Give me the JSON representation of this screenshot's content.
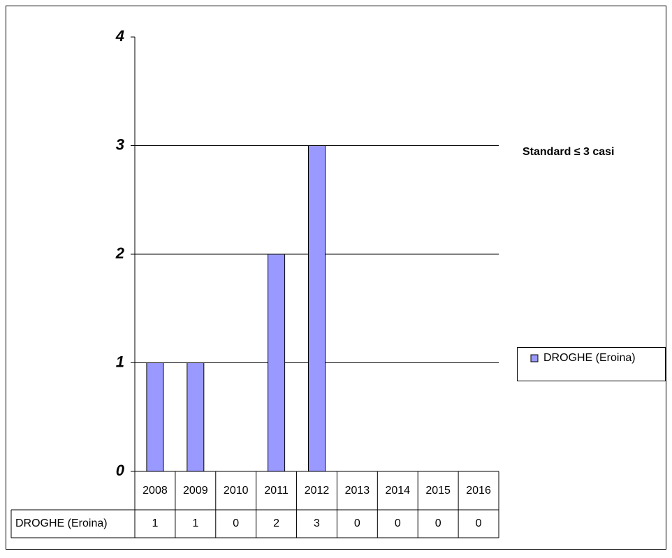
{
  "chart_data": {
    "type": "bar",
    "categories": [
      "2008",
      "2009",
      "2010",
      "2011",
      "2012",
      "2013",
      "2014",
      "2015",
      "2016"
    ],
    "series": [
      {
        "name": "DROGHE (Eroina)",
        "color": "#9999ff",
        "values": [
          1,
          1,
          0,
          2,
          3,
          0,
          0,
          0,
          0
        ]
      }
    ],
    "ylim": [
      0,
      4
    ],
    "yticks": [
      0,
      1,
      2,
      3,
      4
    ],
    "grid": true,
    "annotation": "Standard ≤ 3 casi",
    "legend": "right",
    "data_table": true
  }
}
